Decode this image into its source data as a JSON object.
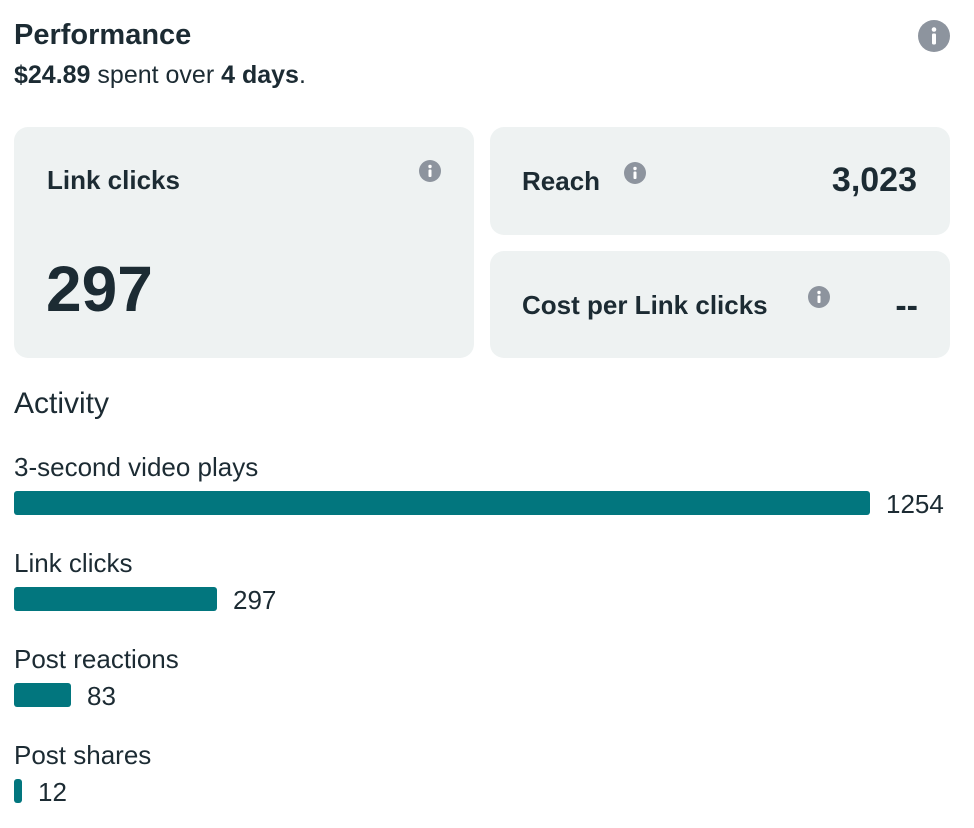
{
  "header": {
    "title": "Performance",
    "spent_amount": "$24.89",
    "spent_middle": " spent over ",
    "spent_duration": "4 days",
    "spent_end": "."
  },
  "cards": {
    "link_clicks": {
      "label": "Link clicks",
      "value": "297"
    },
    "reach": {
      "label": "Reach",
      "value": "3,023"
    },
    "cost_per_link_click": {
      "label": "Cost per Link clicks",
      "value": "--"
    }
  },
  "activity": {
    "title": "Activity",
    "max_value": 1254,
    "items": [
      {
        "label": "3-second video plays",
        "value": 1254,
        "value_text": "1254"
      },
      {
        "label": "Link clicks",
        "value": 297,
        "value_text": "297"
      },
      {
        "label": "Post reactions",
        "value": 83,
        "value_text": "83"
      },
      {
        "label": "Post shares",
        "value": 12,
        "value_text": "12"
      }
    ]
  },
  "colors": {
    "bar": "#02767e",
    "card_background": "#eef2f2",
    "text": "#1c2b33",
    "info_icon": "#8d949e"
  },
  "icons": {
    "info": "info-icon"
  }
}
